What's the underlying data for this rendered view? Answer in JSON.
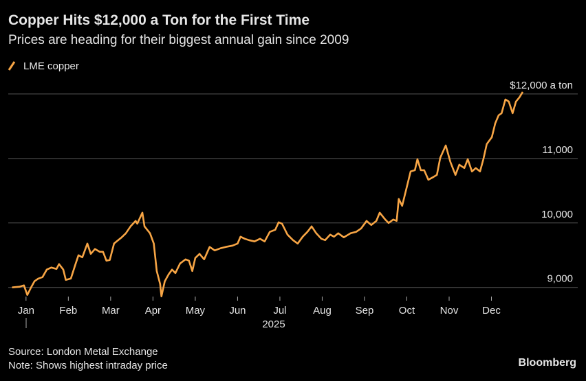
{
  "chart_data": {
    "type": "line",
    "title": "Copper Hits $12,000 a Ton for the First Time",
    "subtitle": "Prices are heading for their biggest annual gain since 2009",
    "year_label": "2025",
    "source": "Source: London Metal Exchange",
    "note": "Note: Shows highest intraday price",
    "brand": "Bloomberg",
    "xlim": [
      -0.42,
      13.04
    ],
    "xticks": [
      {
        "value": 0,
        "label": "Jan"
      },
      {
        "value": 1,
        "label": "Feb"
      },
      {
        "value": 2,
        "label": "Mar"
      },
      {
        "value": 3,
        "label": "Apr"
      },
      {
        "value": 4,
        "label": "May"
      },
      {
        "value": 5,
        "label": "Jun"
      },
      {
        "value": 6,
        "label": "Jul"
      },
      {
        "value": 7,
        "label": "Aug"
      },
      {
        "value": 8,
        "label": "Sep"
      },
      {
        "value": 9,
        "label": "Oct"
      },
      {
        "value": 10,
        "label": "Nov"
      },
      {
        "value": 11,
        "label": "Dec"
      }
    ],
    "ylim": [
      8880,
      12180
    ],
    "yticks": [
      {
        "value": 9000,
        "label": "9,000"
      },
      {
        "value": 10000,
        "label": "10,000"
      },
      {
        "value": 11000,
        "label": "11,000"
      },
      {
        "value": 12000,
        "label": "$12,000 a ton"
      }
    ],
    "grid": true,
    "x": [
      -0.33,
      -0.16,
      -0.05,
      0.03,
      0.11,
      0.2,
      0.29,
      0.39,
      0.49,
      0.6,
      0.72,
      0.78,
      0.88,
      0.94,
      1.06,
      1.17,
      1.24,
      1.33,
      1.45,
      1.53,
      1.63,
      1.74,
      1.82,
      1.9,
      1.98,
      2.08,
      2.18,
      2.26,
      2.36,
      2.47,
      2.59,
      2.63,
      2.75,
      2.8,
      2.93,
      3.02,
      3.09,
      3.17,
      3.2,
      3.28,
      3.37,
      3.45,
      3.53,
      3.64,
      3.77,
      3.85,
      3.93,
      4.0,
      4.1,
      4.21,
      4.34,
      4.46,
      4.59,
      4.72,
      4.88,
      5.0,
      5.07,
      5.17,
      5.27,
      5.4,
      5.53,
      5.64,
      5.76,
      5.89,
      5.97,
      6.05,
      6.18,
      6.31,
      6.42,
      6.54,
      6.65,
      6.75,
      6.86,
      6.98,
      7.07,
      7.19,
      7.28,
      7.38,
      7.51,
      7.67,
      7.8,
      7.92,
      8.05,
      8.16,
      8.28,
      8.36,
      8.49,
      8.57,
      8.68,
      8.76,
      8.81,
      8.89,
      9.01,
      9.09,
      9.19,
      9.25,
      9.33,
      9.41,
      9.51,
      9.63,
      9.71,
      9.79,
      9.92,
      10.03,
      10.15,
      10.24,
      10.36,
      10.44,
      10.54,
      10.63,
      10.73,
      10.81,
      10.89,
      11.01,
      11.09,
      11.17,
      11.24,
      11.33,
      11.41,
      11.5,
      11.58,
      11.66,
      11.74
    ],
    "series": [
      {
        "name": "LME copper",
        "color": "#f7a545",
        "values": [
          9000,
          9011,
          9032,
          8883,
          8989,
          9096,
          9138,
          9160,
          9277,
          9309,
          9287,
          9362,
          9277,
          9117,
          9138,
          9362,
          9500,
          9468,
          9681,
          9521,
          9596,
          9553,
          9553,
          9415,
          9426,
          9681,
          9734,
          9777,
          9840,
          9947,
          10032,
          9989,
          10160,
          9947,
          9840,
          9681,
          9255,
          9053,
          8862,
          9096,
          9202,
          9277,
          9223,
          9372,
          9436,
          9415,
          9255,
          9457,
          9521,
          9436,
          9628,
          9574,
          9606,
          9628,
          9649,
          9681,
          9787,
          9755,
          9734,
          9713,
          9755,
          9713,
          9862,
          9894,
          10011,
          9989,
          9819,
          9734,
          9681,
          9787,
          9862,
          9947,
          9840,
          9755,
          9734,
          9819,
          9787,
          9840,
          9777,
          9840,
          9862,
          9915,
          10032,
          9968,
          10032,
          10160,
          10053,
          10000,
          10053,
          10032,
          10372,
          10266,
          10585,
          10798,
          10819,
          10989,
          10819,
          10819,
          10670,
          10713,
          10745,
          11011,
          11202,
          10947,
          10745,
          10904,
          10851,
          10989,
          10798,
          10851,
          10798,
          10989,
          11223,
          11330,
          11543,
          11670,
          11702,
          11915,
          11883,
          11702,
          11883,
          11947,
          12032
        ]
      }
    ]
  }
}
